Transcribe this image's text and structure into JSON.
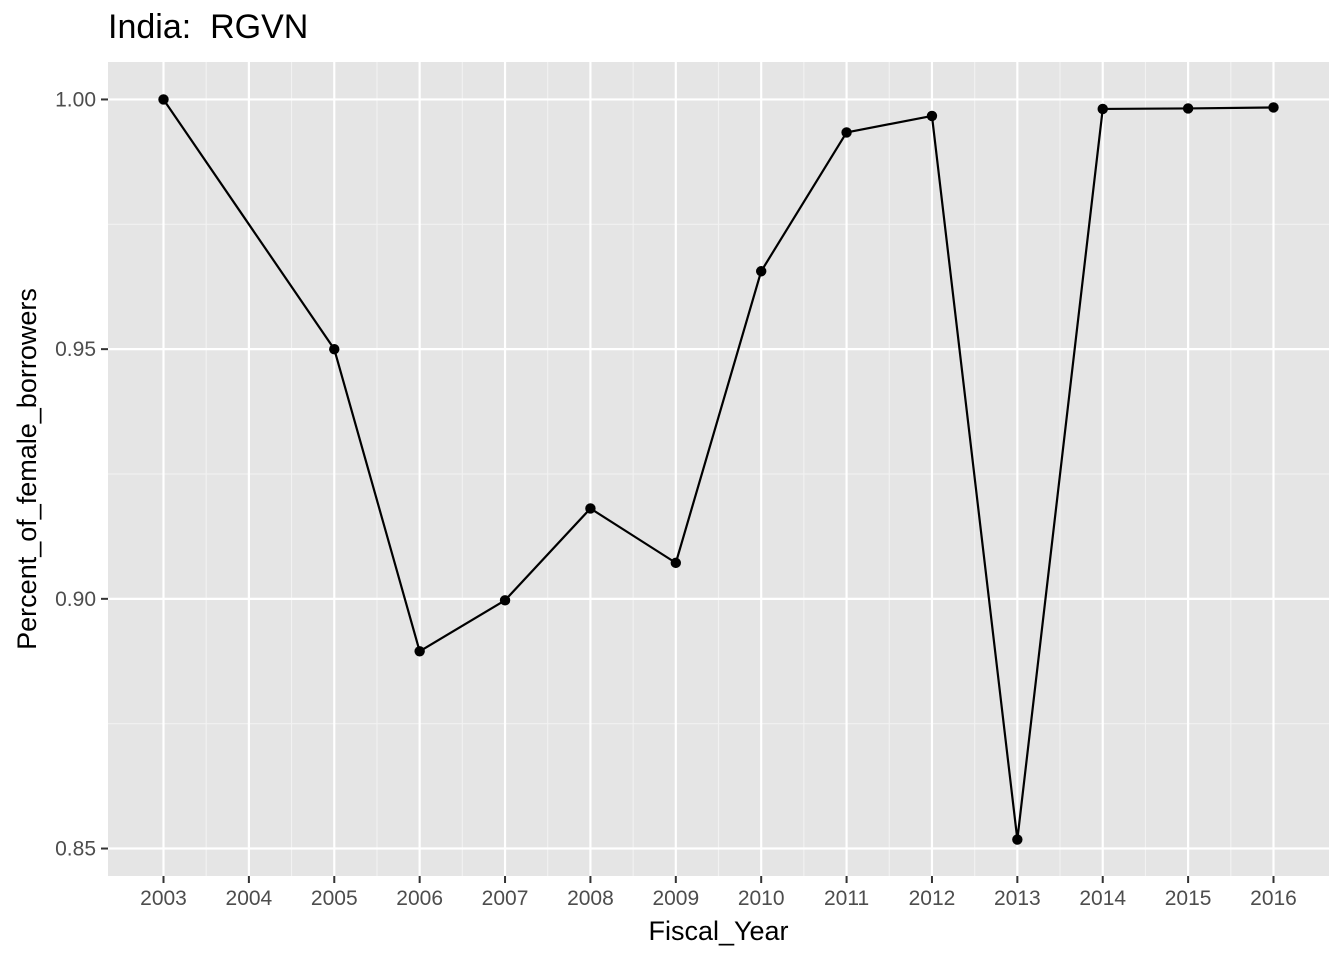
{
  "chart_data": {
    "type": "line",
    "title": "India:  RGVN",
    "xlabel": "Fiscal_Year",
    "ylabel": "Percent_of_female_borrowers",
    "x_ticks": [
      "2003",
      "2004",
      "2005",
      "2006",
      "2007",
      "2008",
      "2009",
      "2010",
      "2011",
      "2012",
      "2013",
      "2014",
      "2015",
      "2016"
    ],
    "y_ticks": [
      "0.85",
      "0.90",
      "0.95",
      "1.00"
    ],
    "xlim": [
      2002.35,
      2016.65
    ],
    "ylim": [
      0.8445,
      1.0075
    ],
    "grid": true,
    "background": "#e5e5e5",
    "line_color": "#000000",
    "series": [
      {
        "x": [
          2003,
          2005,
          2006,
          2007,
          2008,
          2009,
          2010,
          2011,
          2012,
          2013,
          2014,
          2015,
          2016
        ],
        "y": [
          1.0,
          0.95,
          0.8895,
          0.8997,
          0.9181,
          0.9072,
          0.9656,
          0.9934,
          0.9967,
          0.8518,
          0.9981,
          0.9982,
          0.9984
        ]
      }
    ]
  }
}
